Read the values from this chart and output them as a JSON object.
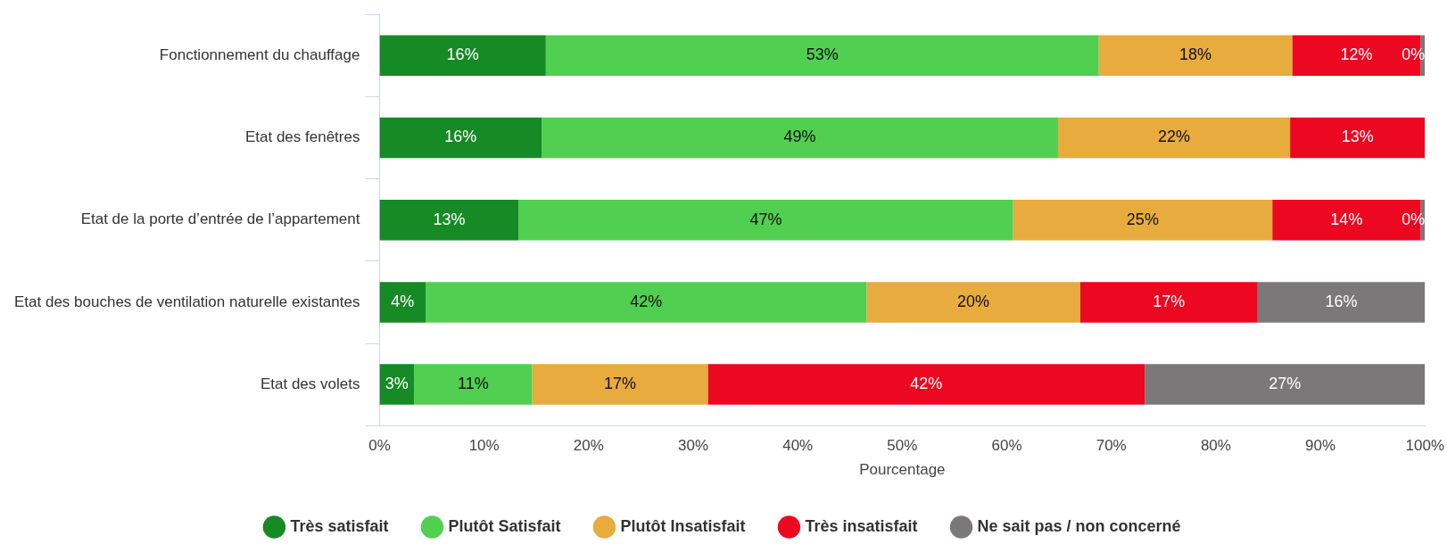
{
  "chart_data": {
    "type": "bar",
    "orientation": "horizontal",
    "stacked": true,
    "xlabel": "Pourcentage",
    "categories": [
      "Fonctionnement du chauffage",
      "Etat des fenêtres",
      "Etat de la porte d’entrée de l’appartement",
      "Etat des bouches de ventilation naturelle existantes",
      "Etat des volets"
    ],
    "series": [
      {
        "name": "Très satisfait",
        "color": "#168a25",
        "values": [
          15.9,
          15.5,
          13.3,
          4.4,
          3.3
        ],
        "value_labels": [
          "16%",
          "16%",
          "13%",
          "4%",
          "3%"
        ]
      },
      {
        "name": "Plutôt Satisfait",
        "color": "#51cf51",
        "values": [
          52.9,
          49.4,
          47.3,
          42.2,
          11.3
        ],
        "value_labels": [
          "53%",
          "49%",
          "47%",
          "42%",
          "11%"
        ]
      },
      {
        "name": "Plutôt Insatisfait",
        "color": "#e8ab3d",
        "values": [
          18.5,
          22.2,
          24.8,
          20.4,
          16.8
        ],
        "value_labels": [
          "18%",
          "22%",
          "25%",
          "20%",
          "17%"
        ]
      },
      {
        "name": "Très insatisfait",
        "color": "#ec0821",
        "values": [
          12.3,
          12.9,
          14.2,
          17.0,
          41.8
        ],
        "value_labels": [
          "12%",
          "13%",
          "14%",
          "17%",
          "42%"
        ]
      },
      {
        "name": "Ne sait pas / non concerné",
        "color": "#7a7878",
        "values": [
          0.4,
          0,
          0.4,
          16.0,
          26.8
        ],
        "value_labels": [
          "0%",
          null,
          "0%",
          "16%",
          "27%"
        ]
      }
    ],
    "xlim": [
      0,
      100
    ],
    "xticks": [
      {
        "value": 0,
        "label": "0%"
      },
      {
        "value": 10,
        "label": "10%"
      },
      {
        "value": 20,
        "label": "20%"
      },
      {
        "value": 30,
        "label": "30%"
      },
      {
        "value": 40,
        "label": "40%"
      },
      {
        "value": 50,
        "label": "50%"
      },
      {
        "value": 60,
        "label": "60%"
      },
      {
        "value": 70,
        "label": "70%"
      },
      {
        "value": 80,
        "label": "80%"
      },
      {
        "value": 90,
        "label": "90%"
      },
      {
        "value": 100,
        "label": "100%"
      }
    ],
    "grid": false,
    "legend": "bottom"
  }
}
